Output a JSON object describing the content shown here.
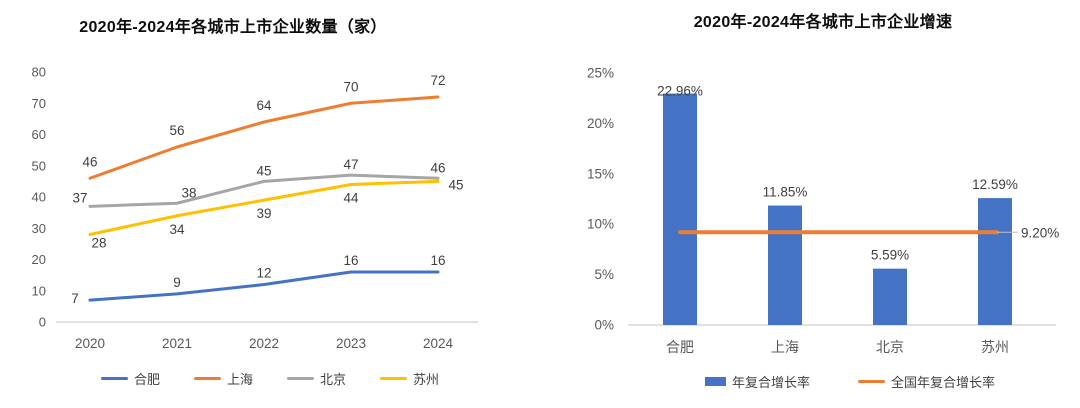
{
  "chart_data": [
    {
      "type": "line",
      "title": "2020年-2024年各城市上市企业数量（家）",
      "categories": [
        "2020",
        "2021",
        "2022",
        "2023",
        "2024"
      ],
      "xlabel": "",
      "ylabel": "",
      "ylim": [
        0,
        80
      ],
      "ytick_step": 10,
      "yticks": [
        "0",
        "10",
        "20",
        "30",
        "40",
        "50",
        "60",
        "70",
        "80"
      ],
      "grid": false,
      "legend_position": "bottom",
      "series": [
        {
          "name": "合肥",
          "color": "#4472C4",
          "values": [
            7,
            9,
            12,
            16,
            16
          ]
        },
        {
          "name": "上海",
          "color": "#ED7D31",
          "values": [
            46,
            56,
            64,
            70,
            72
          ]
        },
        {
          "name": "北京",
          "color": "#A5A5A5",
          "values": [
            37,
            38,
            45,
            47,
            46
          ]
        },
        {
          "name": "苏州",
          "color": "#FFC000",
          "values": [
            28,
            34,
            39,
            44,
            45
          ]
        }
      ]
    },
    {
      "type": "bar",
      "title": "2020年-2024年各城市上市企业增速",
      "categories": [
        "合肥",
        "上海",
        "北京",
        "苏州"
      ],
      "xlabel": "",
      "ylabel": "",
      "ylim": [
        0,
        25
      ],
      "ytick_step": 5,
      "yticks": [
        "0%",
        "5%",
        "10%",
        "15%",
        "20%",
        "25%"
      ],
      "grid": false,
      "legend_position": "bottom",
      "bar_series": {
        "name": "年复合增长率",
        "color": "#4472C4",
        "values": [
          22.96,
          11.85,
          5.59,
          12.59
        ],
        "labels": [
          "22.96%",
          "11.85%",
          "5.59%",
          "12.59%"
        ]
      },
      "reference_line": {
        "name": "全国年复合增长率",
        "color": "#ED7D31",
        "value": 9.2,
        "label": "9.20%"
      }
    }
  ],
  "colors": {
    "axis_line": "#D9D9D9",
    "tick_text": "#595959",
    "label_text": "#3f3f3f",
    "leader_line": "#BFBFBF"
  }
}
